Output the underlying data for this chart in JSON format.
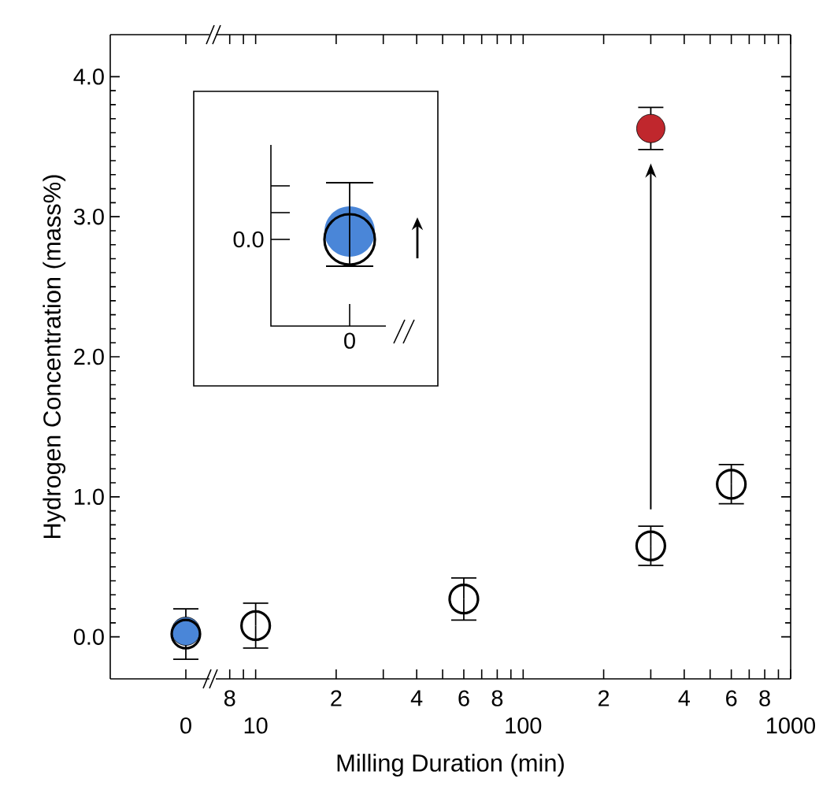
{
  "chart_data": [
    {
      "type": "scatter",
      "ylabel": "Hydrogen Concentration (mass%)",
      "marker": "circle",
      "categories": [
        "0"
      ],
      "ylim": [
        -0.3,
        4.3
      ],
      "yticks": [
        {
          "value": 0,
          "label": "0.0"
        },
        {
          "value": 1,
          "label": "1.0"
        },
        {
          "value": 2,
          "label": "2.0"
        },
        {
          "value": 3,
          "label": "3.0"
        },
        {
          "value": 4,
          "label": "4.0"
        }
      ],
      "series": [
        {
          "color": "#4a86d8",
          "values": [
            0.04
          ]
        },
        {
          "color": "#000000",
          "values": [
            0.02
          ],
          "errors": [
            0.18
          ]
        }
      ]
    },
    {
      "type": "scatter",
      "xlabel": "Milling Duration (min)",
      "marker": "circle",
      "log": "x",
      "tick_labels": "x",
      "xlim": [
        7,
        1000
      ],
      "ylim": [
        -0.3,
        4.3
      ],
      "yticks": [
        {
          "value": 0,
          "label": null
        },
        {
          "value": 1,
          "label": null
        },
        {
          "value": 2,
          "label": null
        },
        {
          "value": 3,
          "label": null
        },
        {
          "value": 4,
          "label": null
        }
      ],
      "xticks": [
        {
          "value": 8,
          "label": null
        },
        {
          "value": 9,
          "label": null
        },
        10,
        {
          "value": 20,
          "label": null
        },
        {
          "value": 30,
          "label": null
        },
        {
          "value": 40,
          "label": null
        },
        {
          "value": 50,
          "label": null
        },
        {
          "value": 60,
          "label": null
        },
        {
          "value": 70,
          "label": null
        },
        {
          "value": 80,
          "label": null
        },
        {
          "value": 90,
          "label": null
        },
        100,
        {
          "value": 200,
          "label": null
        },
        {
          "value": 300,
          "label": null
        },
        {
          "value": 400,
          "label": null
        },
        {
          "value": 500,
          "label": null
        },
        {
          "value": 600,
          "label": null
        },
        {
          "value": 700,
          "label": null
        },
        {
          "value": 800,
          "label": null
        },
        {
          "value": 900,
          "label": null
        },
        1000
      ],
      "annotations": [
        "8",
        "2",
        "4",
        "6",
        "8",
        "2",
        "4",
        "6",
        "8"
      ],
      "series": [
        {
          "color": "#000000",
          "x": [
            10,
            60,
            300,
            600
          ],
          "values": [
            0.08,
            0.27,
            0.65,
            1.09
          ],
          "errors": [
            0.16,
            0.15,
            0.14,
            0.14
          ]
        },
        {
          "color": "#c0272d",
          "x": [
            300
          ],
          "values": [
            3.63
          ],
          "errors": [
            0.15
          ]
        }
      ]
    },
    {
      "type": "other",
      "annotations": [
        "0.0",
        "0"
      ]
    }
  ]
}
